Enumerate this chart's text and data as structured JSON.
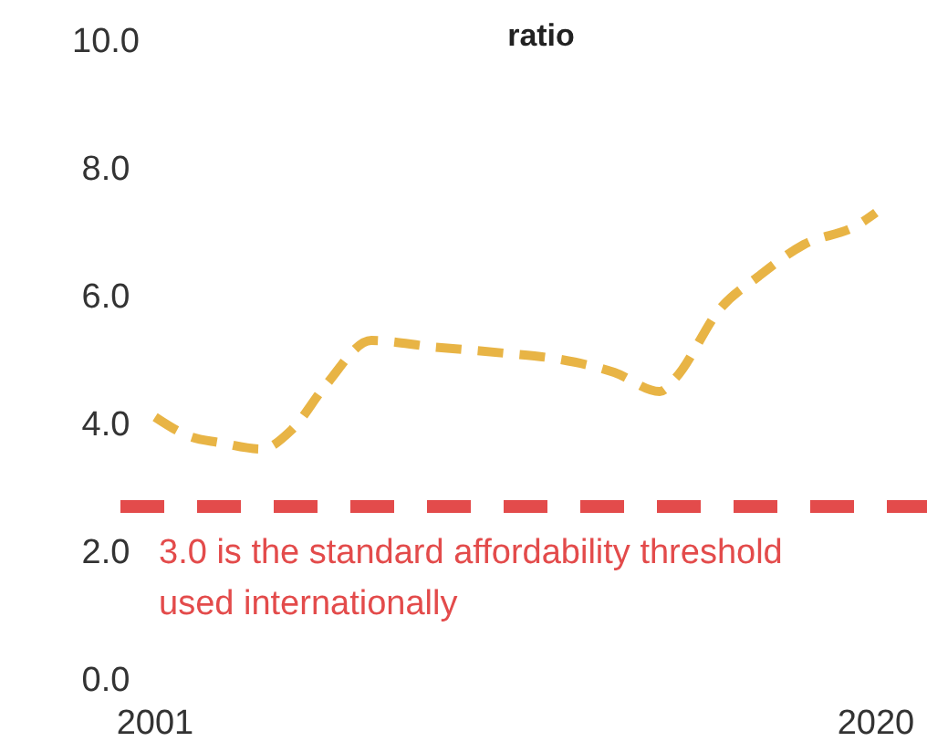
{
  "chart_data": {
    "type": "line",
    "title": "ratio",
    "x": [
      2001,
      2001.9,
      2002.7,
      2003.8,
      2004.6,
      2005.5,
      2006.7,
      2008.3,
      2010.2,
      2011.7,
      2013.1,
      2014.3,
      2014.7,
      2015.9,
      2016.9,
      2018.1,
      2019.5,
      2020
    ],
    "series": [
      {
        "color": "#e8b445",
        "values": [
          4.1,
          3.8,
          3.7,
          3.6,
          3.9,
          4.6,
          5.3,
          5.2,
          5.1,
          5.0,
          4.8,
          4.5,
          4.7,
          5.8,
          6.3,
          6.8,
          7.1,
          7.3
        ]
      }
    ],
    "xlim": [
      2001,
      2020
    ],
    "xticks": [
      2001,
      2020
    ],
    "ylim": [
      0,
      10
    ],
    "yticks": [
      {
        "value": 0,
        "label": "0.0"
      },
      {
        "value": 2,
        "label": "2.0"
      },
      {
        "value": 4,
        "label": "4.0"
      },
      {
        "value": 6,
        "label": "6.0"
      },
      {
        "value": 8,
        "label": "8.0"
      },
      {
        "value": 10,
        "label": "10.0"
      }
    ],
    "ref_lines": [
      {
        "axis": "y",
        "value": 2.7,
        "label": "3.0 is the standard affordability threshold used internationally",
        "color": "#e34b4b",
        "line_style": "dashed"
      }
    ],
    "line_style": "dashed",
    "marker": "none",
    "grid": false
  }
}
